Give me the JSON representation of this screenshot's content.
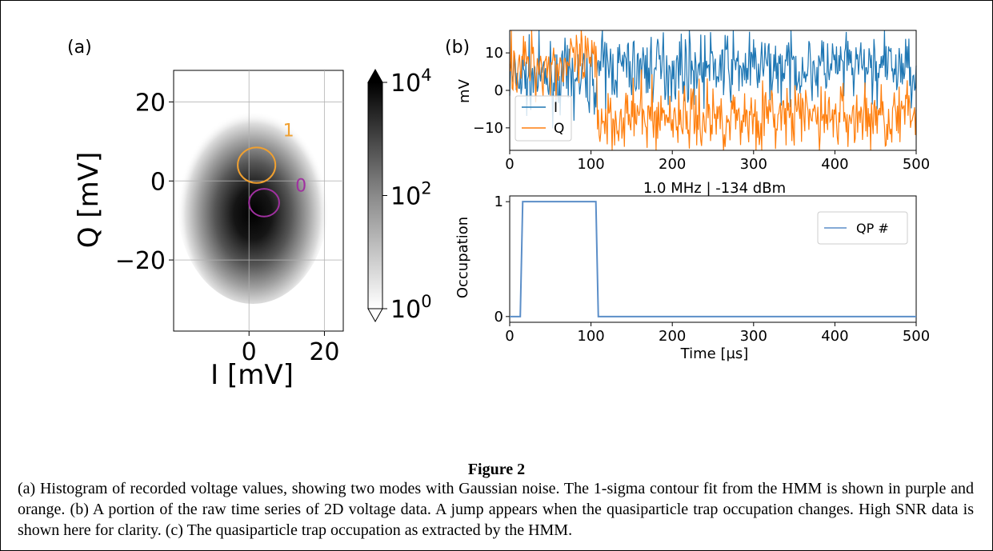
{
  "panels": [
    {
      "label": "(a)",
      "type": "heatmap",
      "xlabel": "I [mV]",
      "ylabel": "Q [mV]",
      "xlim": [
        -20,
        25
      ],
      "ylim": [
        -38,
        28
      ],
      "xticks": [
        0,
        20
      ],
      "yticks": [
        -20,
        0,
        20
      ],
      "ytick_labels": [
        "−20",
        "0",
        "20"
      ],
      "colorbar": {
        "scale": "log",
        "range": [
          1,
          10000
        ],
        "ticks": [
          {
            "v": 1,
            "base": "10",
            "exp": "0"
          },
          {
            "v": 100,
            "base": "10",
            "exp": "2"
          },
          {
            "v": 10000,
            "base": "10",
            "exp": "4"
          }
        ]
      },
      "contours": [
        {
          "label": "1",
          "center": [
            2,
            4
          ],
          "radius": [
            5,
            4.5
          ],
          "color": "#f0a030"
        },
        {
          "label": "0",
          "center": [
            4,
            -5.5
          ],
          "radius": [
            4,
            3.5
          ],
          "color": "#a030a0"
        }
      ]
    },
    {
      "label": "(b)",
      "type": "line",
      "ylabel": "mV",
      "xlim": [
        0,
        500
      ],
      "ylim": [
        -16,
        16
      ],
      "xticks": [
        0,
        100,
        200,
        300,
        400,
        500
      ],
      "yticks": [
        -10,
        0,
        10
      ],
      "ytick_labels": [
        "−10",
        "0",
        "10"
      ],
      "series": [
        {
          "name": "I",
          "color": "#1f77b4",
          "mean_before": 3,
          "mean_after": 6,
          "noise": 4.5
        },
        {
          "name": "Q",
          "color": "#ff7f0e",
          "mean_before": 7,
          "mean_after": -7,
          "noise": 4.5
        }
      ],
      "jump_at": 108
    },
    {
      "label": "",
      "type": "line",
      "title": "1.0 MHz | -134 dBm",
      "xlabel": "Time [µs]",
      "ylabel": "Occupation",
      "xlim": [
        0,
        500
      ],
      "ylim": [
        -0.05,
        1.05
      ],
      "xticks": [
        0,
        100,
        200,
        300,
        400,
        500
      ],
      "yticks": [
        0,
        1
      ],
      "series": [
        {
          "name": "QP #",
          "color": "#5b8ec8",
          "x": [
            0,
            13,
            16,
            106,
            109,
            500
          ],
          "y": [
            0,
            0,
            1,
            1,
            0,
            0
          ]
        }
      ]
    }
  ],
  "caption": {
    "title": "Figure 2",
    "body": "(a) Histogram of recorded voltage values, showing two modes with Gaussian noise. The 1-sigma contour fit from the HMM is shown in purple and orange. (b) A portion of the raw time series of 2D voltage data. A jump appears when the quasiparticle trap occupation changes. High SNR data is shown here for clarity. (c) The quasiparticle trap occupation as extracted by the HMM."
  }
}
